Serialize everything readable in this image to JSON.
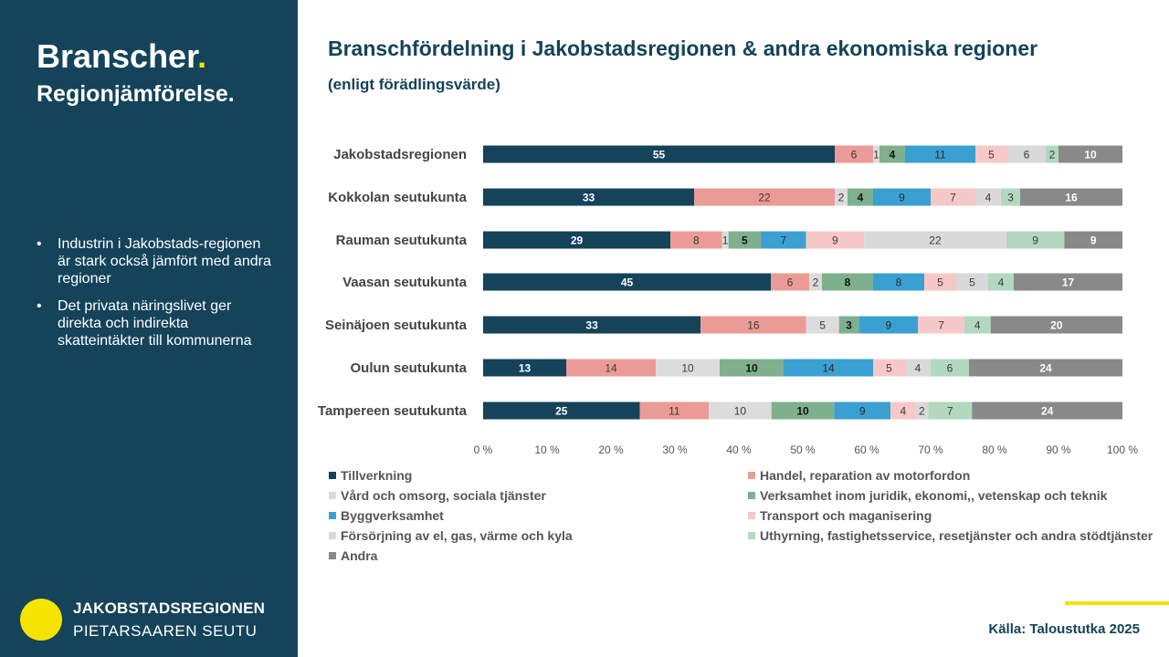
{
  "sidebar": {
    "title": "Branscher",
    "title_dot": ".",
    "subtitle": "Regionjämförelse.",
    "bullets": [
      "Industrin i Jakobstads-regionen är stark också jämfört med andra regioner",
      "Det privata näringslivet ger direkta och indirekta skatteintäkter till kommunerna"
    ],
    "logo_line1": "JAKOBSTADSREGIONEN",
    "logo_line2": "PIETARSAAREN SEUTU"
  },
  "source": "Källa: Taloustutka 2025",
  "chart_data": {
    "type": "bar",
    "orientation": "horizontal",
    "stacked": "percent",
    "title": "Branschfördelning i Jakobstadsregionen & andra ekonomiska regioner",
    "subtitle": "(enligt förädlingsvärde)",
    "categories": [
      "Jakobstadsregionen",
      "Kokkolan seutukunta",
      "Rauman seutukunta",
      "Vaasan seutukunta",
      "Seinäjoen seutukunta",
      "Oulun seutukunta",
      "Tampereen seutukunta"
    ],
    "x_ticks": [
      "0 %",
      "10 %",
      "20 %",
      "30 %",
      "40 %",
      "50 %",
      "60 %",
      "70 %",
      "80 %",
      "90 %",
      "100 %"
    ],
    "xlim": [
      0,
      100
    ],
    "legend_position": "bottom",
    "series": [
      {
        "name": "Tillverkning",
        "color": "#14435a",
        "label_color": "#ffffff",
        "values": [
          55,
          33,
          29,
          45,
          33,
          13,
          25
        ]
      },
      {
        "name": "Handel, reparation av motorfordon",
        "color": "#eb9b96",
        "label_color": "#3a3a3a",
        "values": [
          6,
          22,
          8,
          6,
          16,
          14,
          11
        ]
      },
      {
        "name": "Vård och omsorg, sociala tjänster",
        "color": "#dcdcdc",
        "label_color": "#3a3a3a",
        "values": [
          1,
          2,
          1,
          2,
          5,
          10,
          10
        ]
      },
      {
        "name": "Verksamhet inom juridik, ekonomi,, vetenskap och teknik",
        "color": "#7fb08e",
        "label_color": "#111111",
        "values": [
          4,
          4,
          5,
          8,
          3,
          10,
          10
        ]
      },
      {
        "name": "Byggverksamhet",
        "color": "#3aa0d1",
        "label_color": "#2b2b2b",
        "values": [
          11,
          9,
          7,
          8,
          9,
          14,
          9
        ]
      },
      {
        "name": "Transport och maganisering",
        "color": "#f7c8c8",
        "label_color": "#3a3a3a",
        "values": [
          5,
          7,
          9,
          5,
          7,
          5,
          4
        ]
      },
      {
        "name": "Försörjning av el, gas, värme och kyla",
        "color": "#d9d9d9",
        "label_color": "#3a3a3a",
        "values": [
          6,
          4,
          22,
          5,
          0,
          4,
          2
        ]
      },
      {
        "name": "Uthyrning, fastighetsservice, resetjänster och andra stödtjänster",
        "color": "#b2d8c0",
        "label_color": "#3a3a3a",
        "values": [
          2,
          3,
          9,
          4,
          4,
          6,
          7
        ]
      },
      {
        "name": "Andra",
        "color": "#898989",
        "label_color": "#ffffff",
        "values": [
          10,
          16,
          9,
          17,
          20,
          24,
          24
        ]
      }
    ]
  }
}
